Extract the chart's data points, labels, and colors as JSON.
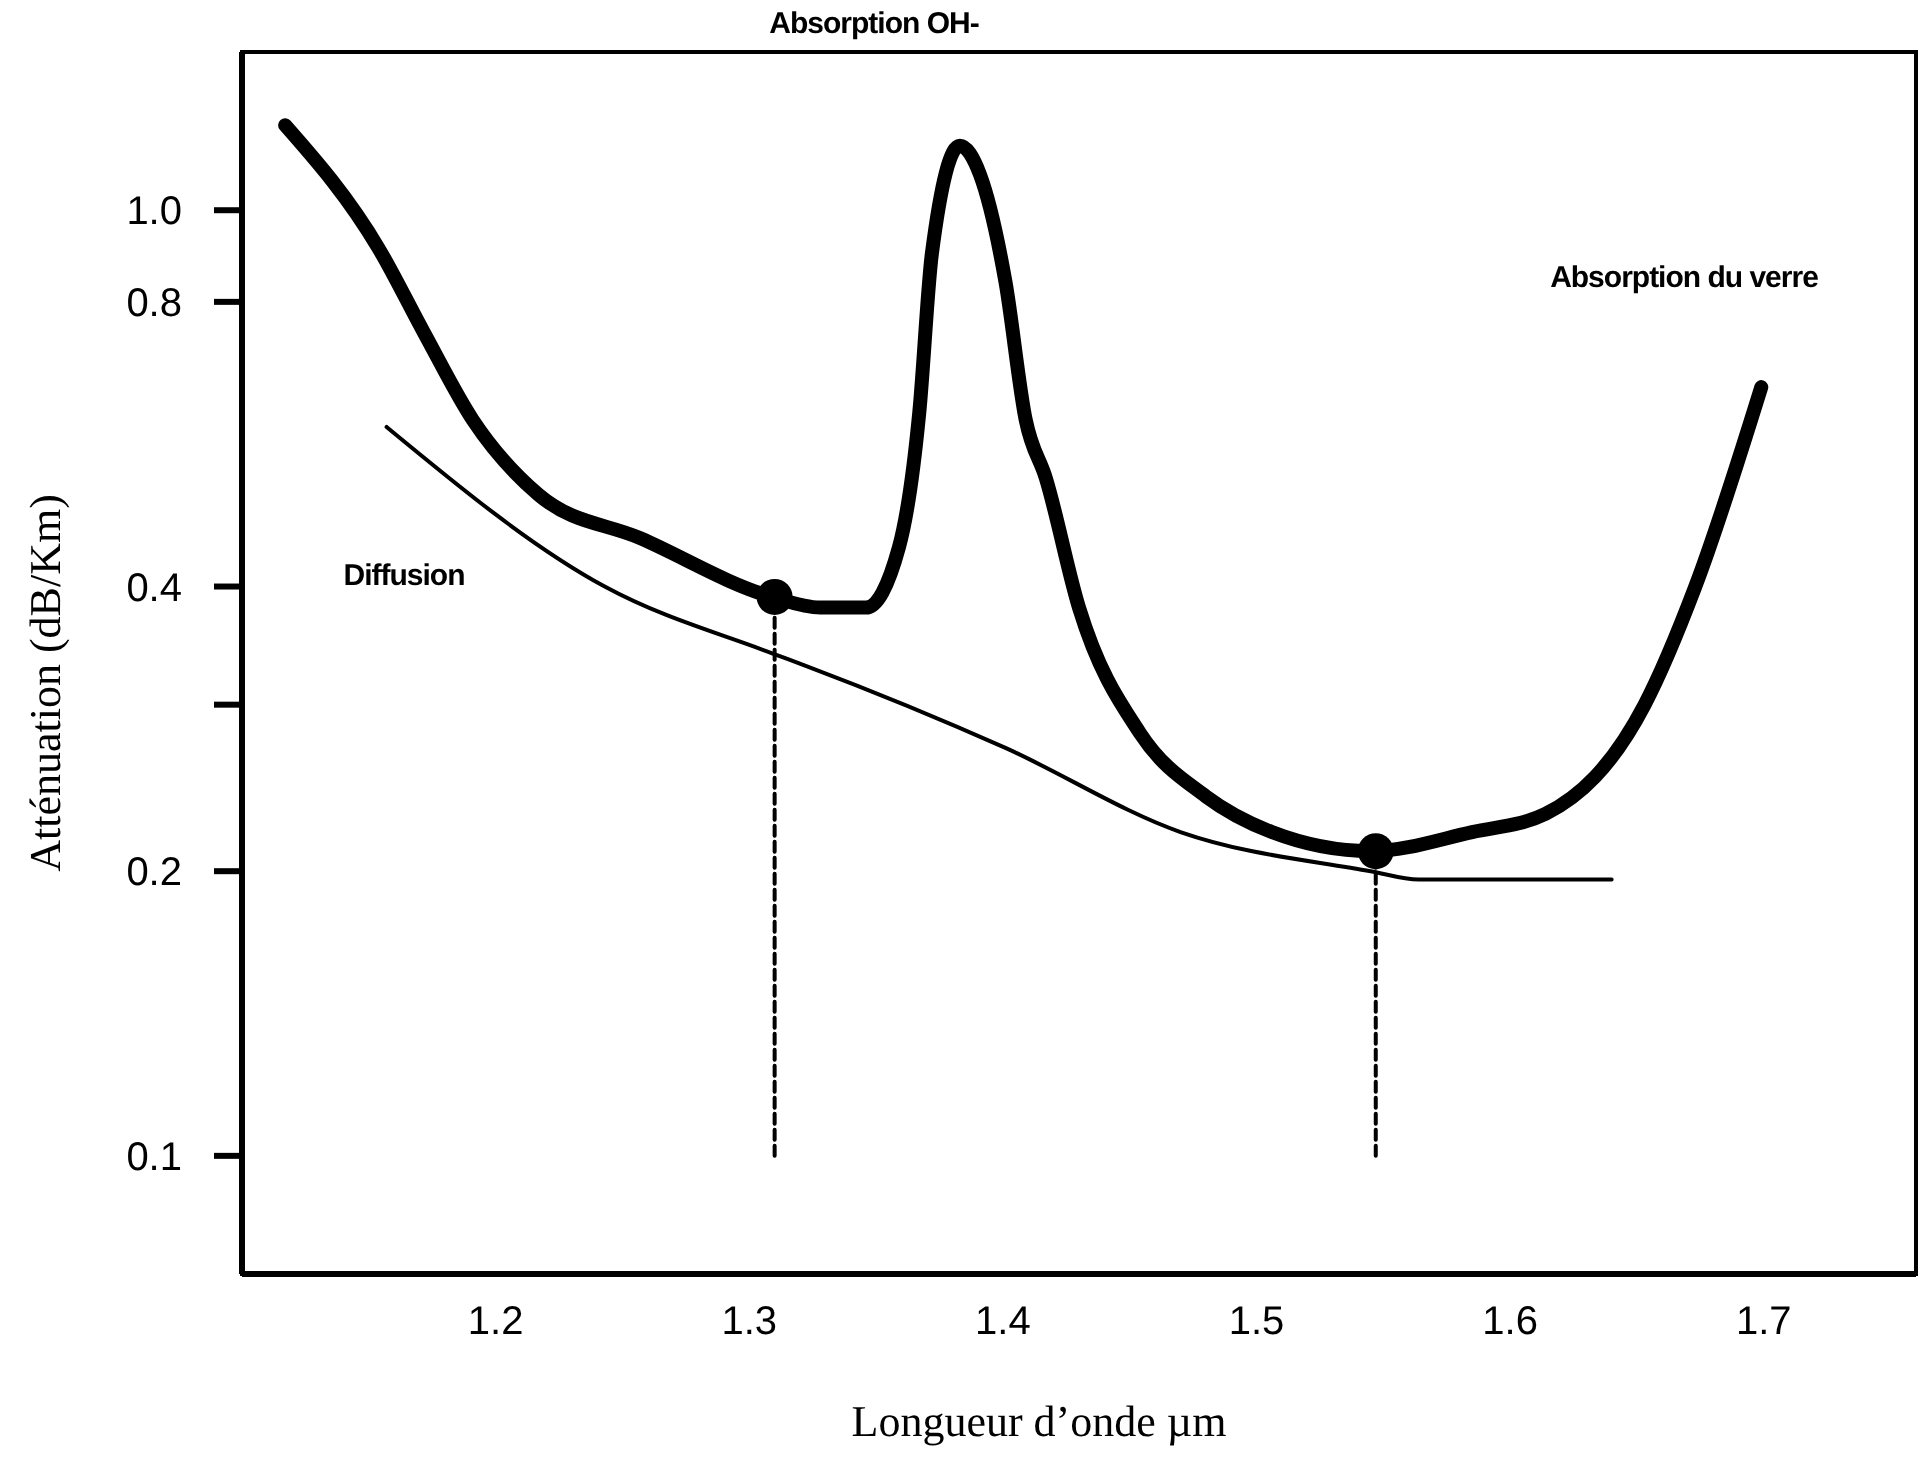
{
  "chart_data": {
    "type": "line",
    "xlabel": "Longueur d’onde µm",
    "ylabel": "Atténuation (dB/Km)",
    "log": "y",
    "grid": false,
    "xlim": [
      1.1,
      1.76
    ],
    "xticks": [
      1.2,
      1.3,
      1.4,
      1.5,
      1.6,
      1.7
    ],
    "ylim": [
      0.075,
      1.47
    ],
    "yticks": [
      0.1,
      0.2,
      {
        "value": 0.3,
        "label": null
      },
      0.4,
      0.8,
      {
        "value": 1.0,
        "label": "1.0"
      }
    ],
    "series": [
      {
        "color": "#000000",
        "line_style": "solid",
        "x": [
          1.117,
          1.154,
          1.172,
          1.191,
          1.217,
          1.257,
          1.309,
          1.328,
          1.346,
          1.359,
          1.367,
          1.372,
          1.383,
          1.391,
          1.401,
          1.409,
          1.417,
          1.43,
          1.454,
          1.48,
          1.506,
          1.545,
          1.585,
          1.614,
          1.653,
          1.673,
          1.699
        ],
        "values": [
          1.23,
          0.91,
          0.74,
          0.6,
          0.5,
          0.45,
          0.39,
          0.38,
          0.38,
          0.44,
          0.61,
          0.9,
          1.17,
          1.09,
          0.84,
          0.6,
          0.52,
          0.38,
          0.28,
          0.24,
          0.22,
          0.21,
          0.22,
          0.23,
          0.3,
          0.4,
          0.65
        ]
      },
      {
        "type": "line",
        "color": "#000000",
        "line_style": "solid",
        "x": [
          1.157,
          1.243,
          1.309,
          1.322,
          1.401,
          1.47,
          1.545,
          1.564,
          1.64
        ],
        "values": [
          0.59,
          0.4,
          0.34,
          0.33,
          0.27,
          0.22,
          0.2,
          0.196,
          0.196
        ]
      },
      {
        "type": "line",
        "color": "#000000",
        "line_style": "dashed",
        "x": [
          1.31,
          1.31
        ],
        "values": [
          0.1,
          0.39
        ]
      },
      {
        "type": "line",
        "color": "#000000",
        "line_style": "dashed",
        "x": [
          1.547,
          1.547
        ],
        "values": [
          0.1,
          0.21
        ]
      },
      {
        "type": "scatter",
        "color": "#000000",
        "marker": "circle",
        "x": [
          1.31,
          1.547
        ],
        "values": [
          0.39,
          0.21
        ]
      }
    ],
    "annotations": [
      "Absorption OH-",
      "Absorption du verre",
      "Diffusion"
    ]
  }
}
